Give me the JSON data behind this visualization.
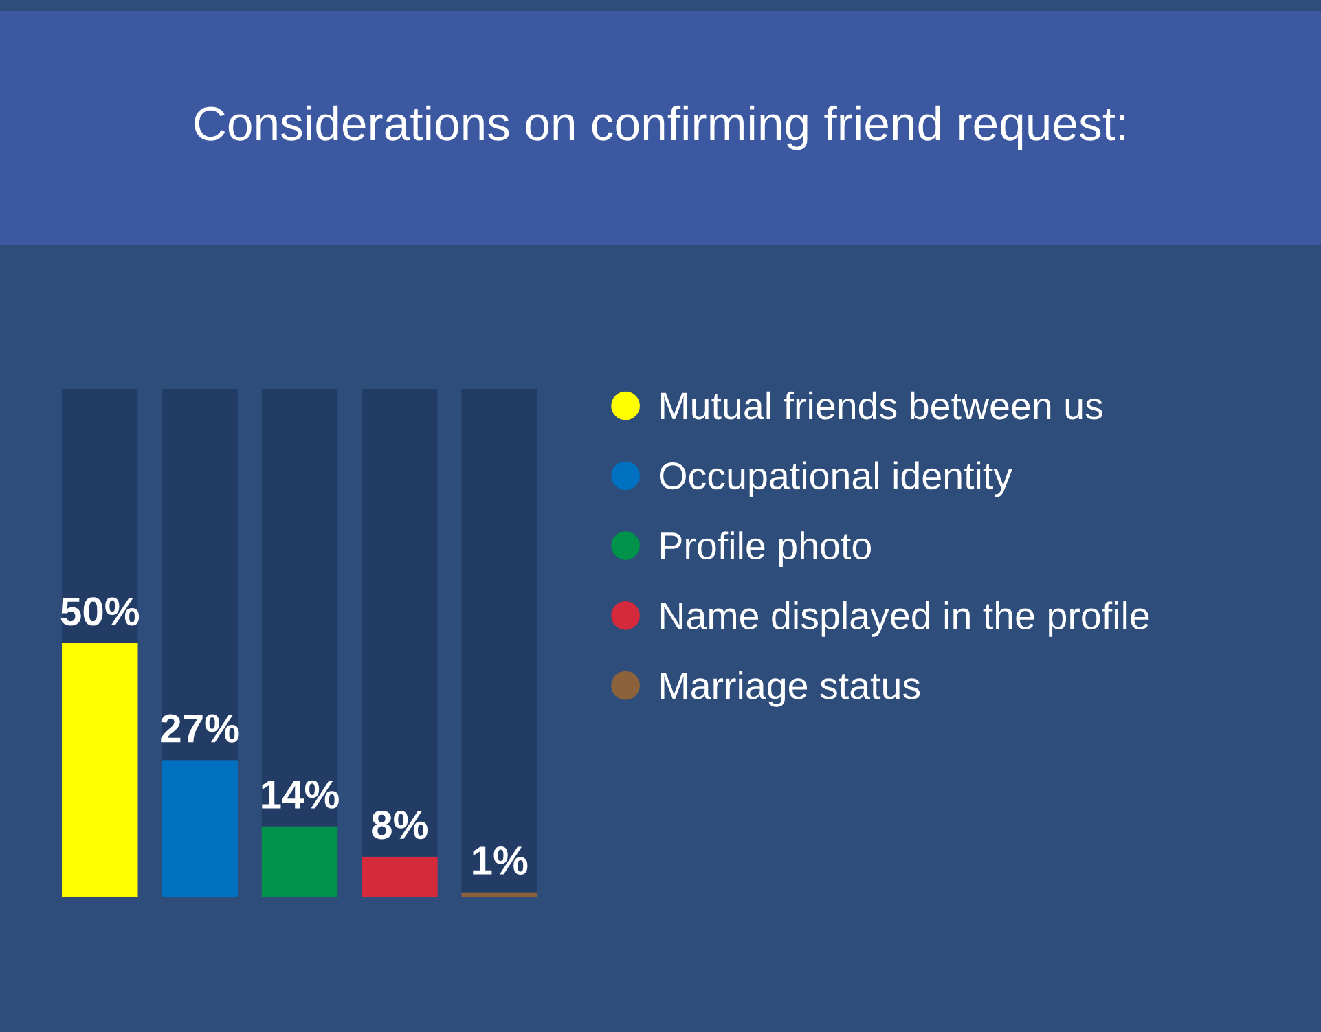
{
  "chart_data": {
    "type": "bar",
    "title": "Considerations on confirming friend request:",
    "categories": [
      null,
      null,
      null,
      null,
      null
    ],
    "series": [
      {
        "name": "Mutual friends between us",
        "color": "#ffff00",
        "values": [
          50,
          null,
          null,
          null,
          null
        ],
        "value_labels": [
          "50%",
          null,
          null,
          null,
          null
        ]
      },
      {
        "name": "Occupational identity",
        "color": "#0070c0",
        "values": [
          null,
          27,
          null,
          null,
          null
        ],
        "value_labels": [
          null,
          "27%",
          null,
          null,
          null
        ]
      },
      {
        "name": "Profile photo",
        "color": "#00914a",
        "values": [
          null,
          null,
          14,
          null,
          null
        ],
        "value_labels": [
          null,
          null,
          "14%",
          null,
          null
        ]
      },
      {
        "name": "Name displayed in the profile",
        "color": "#d42a3c",
        "values": [
          null,
          null,
          null,
          8,
          null
        ],
        "value_labels": [
          null,
          null,
          null,
          "8%",
          null
        ]
      },
      {
        "name": "Marriage status",
        "color": "#8b623a",
        "values": [
          null,
          null,
          null,
          null,
          1
        ],
        "value_labels": [
          null,
          null,
          null,
          null,
          "1%"
        ]
      },
      {
        "color": "#223c66",
        "values": [
          50,
          73,
          86,
          92,
          99
        ]
      }
    ],
    "stacked": true,
    "ylim": [
      0,
      100
    ],
    "tick_labels": false,
    "legend": "right",
    "marker": "circle"
  }
}
